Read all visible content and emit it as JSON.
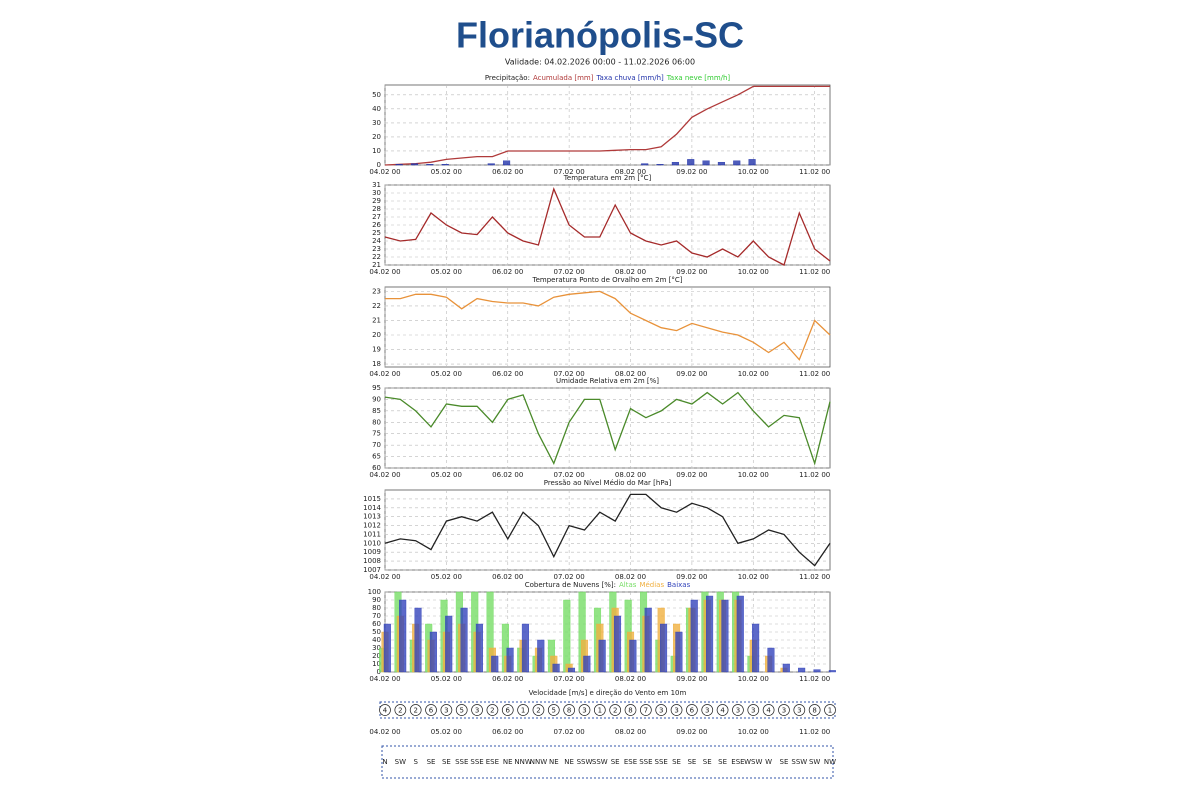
{
  "header": {
    "title": "Florianópolis-SC",
    "validity": "Validade: 04.02.2026 00:00 - 11.02.2026 06:00"
  },
  "chart_data": [
    {
      "type": "combo",
      "title": "Precipitação:",
      "x": [
        0,
        6,
        12,
        18,
        24,
        30,
        36,
        42,
        48,
        54,
        60,
        66,
        72,
        78,
        84,
        90,
        96,
        102,
        108,
        114,
        120,
        126,
        132,
        138,
        144,
        150,
        156,
        162,
        168,
        174
      ],
      "xlim": [
        0,
        174
      ],
      "xticks": [
        {
          "value": 0,
          "label": "04.02 00"
        },
        {
          "value": 24,
          "label": "05.02 00"
        },
        {
          "value": 48,
          "label": "06.02 00"
        },
        {
          "value": 72,
          "label": "07.02 00"
        },
        {
          "value": 96,
          "label": "08.02 00"
        },
        {
          "value": 120,
          "label": "09.02 00"
        },
        {
          "value": 144,
          "label": "10.02 00"
        },
        {
          "value": 168,
          "label": "11.02 00"
        }
      ],
      "ylim": [
        0,
        57
      ],
      "yticks": [
        0,
        10,
        20,
        30,
        40,
        50
      ],
      "series": [
        {
          "name": "Acumulada [mm]",
          "color": "#b03a3a",
          "type": "line",
          "values": [
            0,
            0.5,
            1,
            2,
            4,
            5,
            6,
            6,
            10,
            10,
            10,
            10,
            10,
            10,
            10,
            10.5,
            11,
            11,
            13,
            22,
            34,
            40,
            45,
            50,
            56,
            56,
            56,
            56,
            56,
            56
          ]
        },
        {
          "name": "Taxa chuva [mm/h]",
          "color": "#2233aa",
          "type": "bar",
          "values": [
            0,
            0.5,
            1,
            0.5,
            0.5,
            0,
            0,
            1,
            3,
            0,
            0,
            0,
            0,
            0,
            0,
            0,
            0,
            1,
            0.5,
            2,
            4,
            3,
            2,
            3,
            4,
            0,
            0,
            0,
            0,
            0
          ]
        },
        {
          "name": "Taxa neve [mm/h]",
          "color": "#33cc33",
          "type": "bar",
          "values": [
            0,
            0,
            0,
            0,
            0,
            0,
            0,
            0,
            0,
            0,
            0,
            0,
            0,
            0,
            0,
            0,
            0,
            0,
            0,
            0,
            0,
            0,
            0,
            0,
            0,
            0,
            0,
            0,
            0,
            0
          ]
        }
      ]
    },
    {
      "type": "line",
      "title": "Temperatura em 2m [°C]",
      "color": "#a52a2a",
      "x": [
        0,
        6,
        12,
        18,
        24,
        30,
        36,
        42,
        48,
        54,
        60,
        66,
        72,
        78,
        84,
        90,
        96,
        102,
        108,
        114,
        120,
        126,
        132,
        138,
        144,
        150,
        156,
        162,
        168,
        174
      ],
      "xlim": [
        0,
        174
      ],
      "xticks": [
        {
          "value": 0,
          "label": "04.02 00"
        },
        {
          "value": 24,
          "label": "05.02 00"
        },
        {
          "value": 48,
          "label": "06.02 00"
        },
        {
          "value": 72,
          "label": "07.02 00"
        },
        {
          "value": 96,
          "label": "08.02 00"
        },
        {
          "value": 120,
          "label": "09.02 00"
        },
        {
          "value": 144,
          "label": "10.02 00"
        },
        {
          "value": 168,
          "label": "11.02 00"
        }
      ],
      "ylim": [
        21,
        31
      ],
      "yticks": [
        21,
        22,
        23,
        24,
        25,
        26,
        27,
        28,
        29,
        30,
        31
      ],
      "values": [
        24.5,
        24,
        24.2,
        27.5,
        26,
        25,
        24.8,
        27,
        25,
        24,
        23.5,
        30.5,
        26,
        24.5,
        24.5,
        28.5,
        25,
        24,
        23.5,
        24,
        22.5,
        22,
        23,
        22,
        24,
        22,
        21,
        27.5,
        23,
        21.5
      ]
    },
    {
      "type": "line",
      "title": "Temperatura Ponto de Orvalho em 2m [°C]",
      "color": "#e8923a",
      "x": [
        0,
        6,
        12,
        18,
        24,
        30,
        36,
        42,
        48,
        54,
        60,
        66,
        72,
        78,
        84,
        90,
        96,
        102,
        108,
        114,
        120,
        126,
        132,
        138,
        144,
        150,
        156,
        162,
        168,
        174
      ],
      "xlim": [
        0,
        174
      ],
      "xticks": [
        {
          "value": 0,
          "label": "04.02 00"
        },
        {
          "value": 24,
          "label": "05.02 00"
        },
        {
          "value": 48,
          "label": "06.02 00"
        },
        {
          "value": 72,
          "label": "07.02 00"
        },
        {
          "value": 96,
          "label": "08.02 00"
        },
        {
          "value": 120,
          "label": "09.02 00"
        },
        {
          "value": 144,
          "label": "10.02 00"
        },
        {
          "value": 168,
          "label": "11.02 00"
        }
      ],
      "ylim": [
        17.8,
        23.3
      ],
      "yticks": [
        18,
        19,
        20,
        21,
        22,
        23
      ],
      "values": [
        22.5,
        22.5,
        22.8,
        22.8,
        22.6,
        21.8,
        22.5,
        22.3,
        22.2,
        22.2,
        22,
        22.6,
        22.8,
        22.9,
        23,
        22.5,
        21.5,
        21,
        20.5,
        20.3,
        20.8,
        20.5,
        20.2,
        20,
        19.5,
        18.8,
        19.5,
        18.3,
        21,
        20
      ]
    },
    {
      "type": "line",
      "title": "Umidade Relativa em 2m [%]",
      "color": "#4a8a2a",
      "x": [
        0,
        6,
        12,
        18,
        24,
        30,
        36,
        42,
        48,
        54,
        60,
        66,
        72,
        78,
        84,
        90,
        96,
        102,
        108,
        114,
        120,
        126,
        132,
        138,
        144,
        150,
        156,
        162,
        168,
        174
      ],
      "xlim": [
        0,
        174
      ],
      "xticks": [
        {
          "value": 0,
          "label": "04.02 00"
        },
        {
          "value": 24,
          "label": "05.02 00"
        },
        {
          "value": 48,
          "label": "06.02 00"
        },
        {
          "value": 72,
          "label": "07.02 00"
        },
        {
          "value": 96,
          "label": "08.02 00"
        },
        {
          "value": 120,
          "label": "09.02 00"
        },
        {
          "value": 144,
          "label": "10.02 00"
        },
        {
          "value": 168,
          "label": "11.02 00"
        }
      ],
      "ylim": [
        60,
        95
      ],
      "yticks": [
        60,
        65,
        70,
        75,
        80,
        85,
        90,
        95
      ],
      "values": [
        91,
        90,
        85,
        78,
        88,
        87,
        87,
        80,
        90,
        92,
        75,
        62,
        80,
        90,
        90,
        68,
        86,
        82,
        85,
        90,
        88,
        93,
        88,
        93,
        85,
        78,
        83,
        82,
        62,
        89
      ]
    },
    {
      "type": "line",
      "title": "Pressão ao Nível Médio do Mar [hPa]",
      "color": "#222222",
      "x": [
        0,
        6,
        12,
        18,
        24,
        30,
        36,
        42,
        48,
        54,
        60,
        66,
        72,
        78,
        84,
        90,
        96,
        102,
        108,
        114,
        120,
        126,
        132,
        138,
        144,
        150,
        156,
        162,
        168,
        174
      ],
      "xlim": [
        0,
        174
      ],
      "xticks": [
        {
          "value": 0,
          "label": "04.02 00"
        },
        {
          "value": 24,
          "label": "05.02 00"
        },
        {
          "value": 48,
          "label": "06.02 00"
        },
        {
          "value": 72,
          "label": "07.02 00"
        },
        {
          "value": 96,
          "label": "08.02 00"
        },
        {
          "value": 120,
          "label": "09.02 00"
        },
        {
          "value": 144,
          "label": "10.02 00"
        },
        {
          "value": 168,
          "label": "11.02 00"
        }
      ],
      "ylim": [
        1007,
        1016
      ],
      "yticks": [
        1007,
        1008,
        1009,
        1010,
        1011,
        1012,
        1013,
        1014,
        1015
      ],
      "values": [
        1010,
        1010.5,
        1010.3,
        1009.3,
        1012.5,
        1013,
        1012.5,
        1013.5,
        1010.5,
        1013.5,
        1012,
        1008.5,
        1012,
        1011.5,
        1013.5,
        1012.5,
        1015.5,
        1015.5,
        1014,
        1013.5,
        1014.5,
        1014,
        1013,
        1010,
        1010.5,
        1011.5,
        1011,
        1009,
        1007.5,
        1010
      ]
    },
    {
      "type": "bar",
      "title": "Cobertura de Nuvens [%]:",
      "x": [
        0,
        6,
        12,
        18,
        24,
        30,
        36,
        42,
        48,
        54,
        60,
        66,
        72,
        78,
        84,
        90,
        96,
        102,
        108,
        114,
        120,
        126,
        132,
        138,
        144,
        150,
        156,
        162,
        168,
        174
      ],
      "xlim": [
        0,
        174
      ],
      "xticks": [
        {
          "value": 0,
          "label": "04.02 00"
        },
        {
          "value": 24,
          "label": "05.02 00"
        },
        {
          "value": 48,
          "label": "06.02 00"
        },
        {
          "value": 72,
          "label": "07.02 00"
        },
        {
          "value": 96,
          "label": "08.02 00"
        },
        {
          "value": 120,
          "label": "09.02 00"
        },
        {
          "value": 144,
          "label": "10.02 00"
        },
        {
          "value": 168,
          "label": "11.02 00"
        }
      ],
      "ylim": [
        0,
        100
      ],
      "yticks": [
        0,
        10,
        20,
        30,
        40,
        50,
        60,
        70,
        80,
        90,
        100
      ],
      "series": [
        {
          "name": "Altas",
          "color": "#77dd66",
          "values": [
            30,
            100,
            40,
            60,
            90,
            100,
            100,
            100,
            60,
            30,
            20,
            40,
            90,
            100,
            80,
            100,
            90,
            100,
            40,
            20,
            80,
            100,
            100,
            100,
            20,
            0,
            0,
            0,
            0,
            0
          ]
        },
        {
          "name": "Médias",
          "color": "#f0b040",
          "values": [
            50,
            70,
            60,
            40,
            50,
            60,
            50,
            30,
            20,
            40,
            30,
            20,
            10,
            40,
            60,
            80,
            50,
            70,
            80,
            60,
            80,
            90,
            90,
            90,
            40,
            20,
            5,
            0,
            0,
            0
          ]
        },
        {
          "name": "Baixas",
          "color": "#3344bb",
          "values": [
            60,
            90,
            80,
            50,
            70,
            80,
            60,
            20,
            30,
            60,
            40,
            10,
            5,
            20,
            40,
            70,
            40,
            80,
            60,
            50,
            90,
            95,
            90,
            95,
            60,
            30,
            10,
            5,
            3,
            2
          ]
        }
      ]
    },
    {
      "type": "wind",
      "title": "Velocidade [m/s] e direção do Vento em 10m",
      "x": [
        0,
        6,
        12,
        18,
        24,
        30,
        36,
        42,
        48,
        54,
        60,
        66,
        72,
        78,
        84,
        90,
        96,
        102,
        108,
        114,
        120,
        126,
        132,
        138,
        144,
        150,
        156,
        162,
        168,
        174
      ],
      "xlim": [
        0,
        174
      ],
      "xticks": [
        {
          "value": 0,
          "label": "04.02 00"
        },
        {
          "value": 24,
          "label": "05.02 00"
        },
        {
          "value": 48,
          "label": "06.02 00"
        },
        {
          "value": 72,
          "label": "07.02 00"
        },
        {
          "value": 96,
          "label": "08.02 00"
        },
        {
          "value": 120,
          "label": "09.02 00"
        },
        {
          "value": 144,
          "label": "10.02 00"
        },
        {
          "value": 168,
          "label": "11.02 00"
        }
      ],
      "values": [
        4,
        2,
        2,
        6,
        3,
        5,
        3,
        2,
        6,
        1,
        2,
        5,
        8,
        3,
        1,
        2,
        8,
        7,
        3,
        3,
        6,
        3,
        4,
        3,
        3,
        4,
        3,
        3,
        8,
        1
      ],
      "directions": [
        "N",
        "SW",
        "S",
        "SE",
        "SE",
        "SSE",
        "SSE",
        "ESE",
        "NE",
        "NNW",
        "NNW",
        "NE",
        "NE",
        "SSW",
        "SSW",
        "SE",
        "ESE",
        "SSE",
        "SSE",
        "SE",
        "SE",
        "SE",
        "SE",
        "ESE",
        "WSW",
        "W",
        "SE",
        "SSW",
        "SW",
        "NW"
      ]
    }
  ]
}
